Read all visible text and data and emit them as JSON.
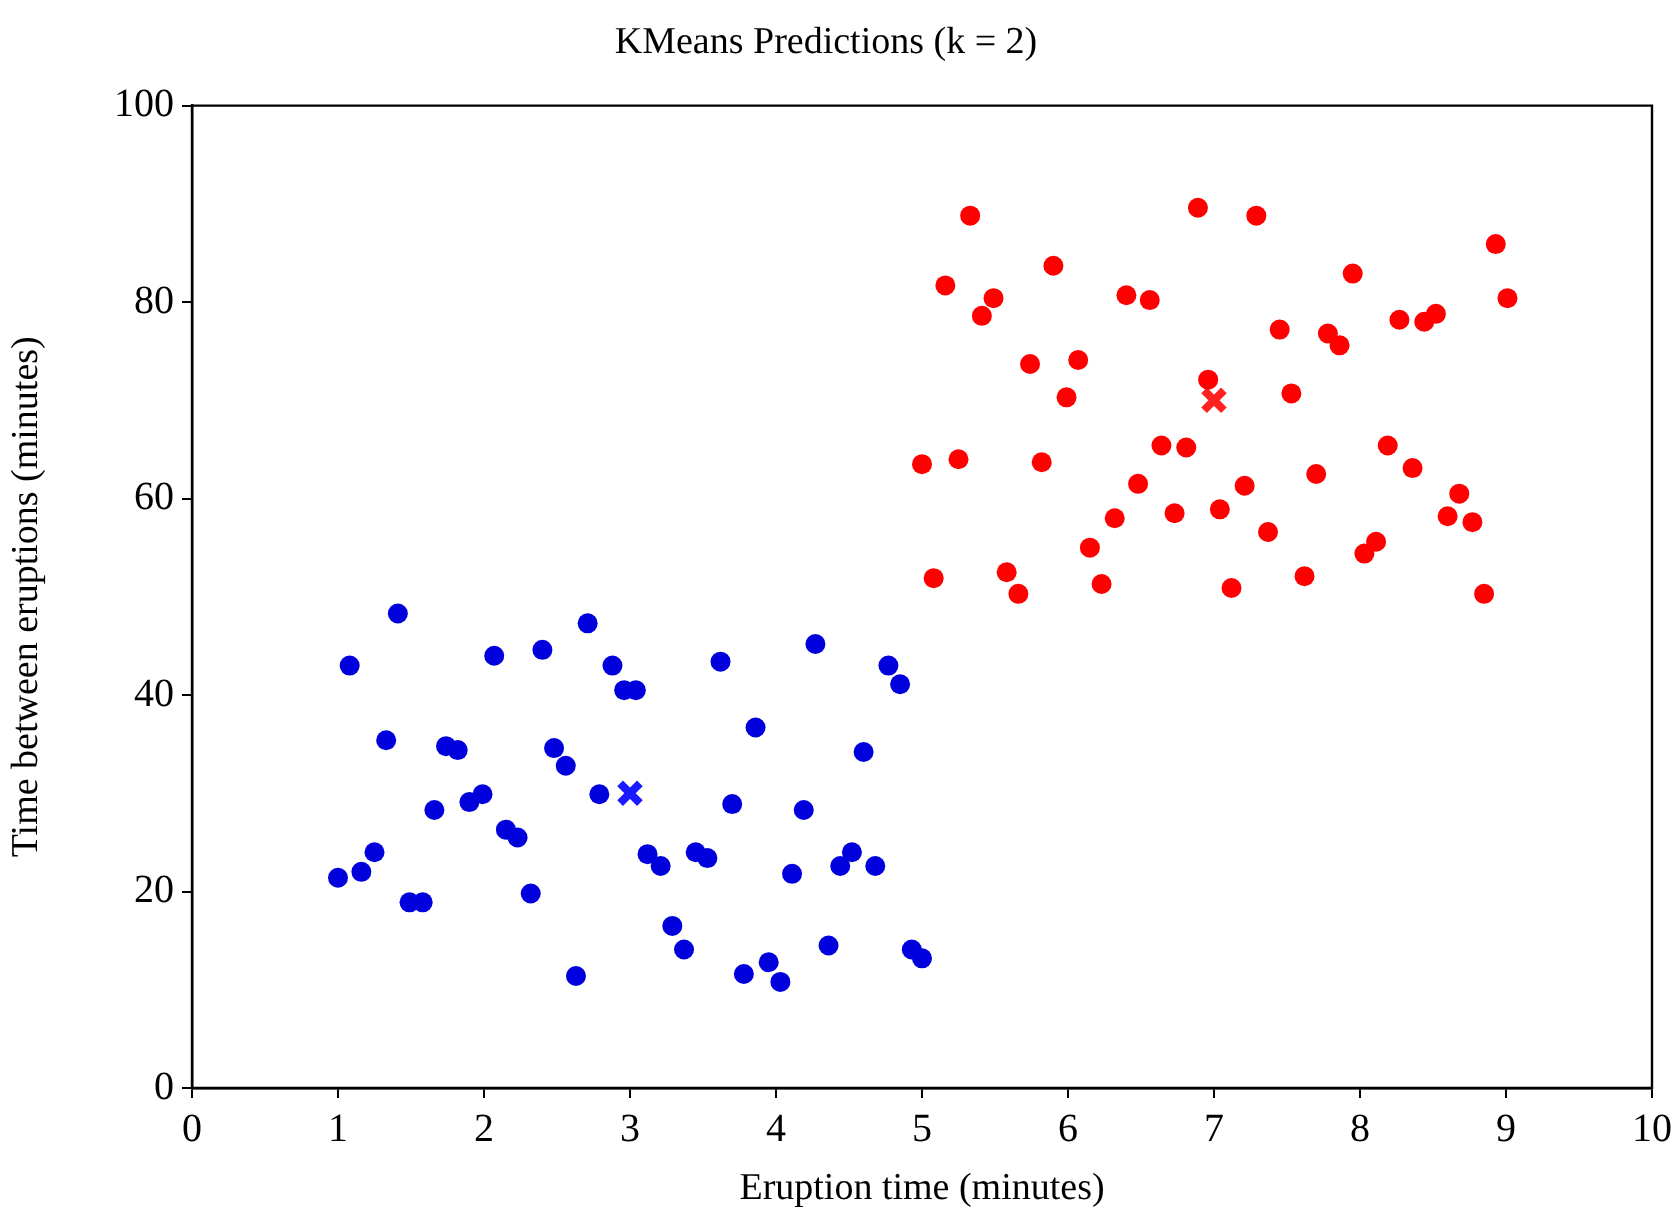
{
  "chart_data": {
    "type": "scatter",
    "title": "KMeans Predictions (k = 2)",
    "xlabel": "Eruption time (minutes)",
    "ylabel": "Time between eruptions (minutes)",
    "xlim": [
      0,
      10
    ],
    "xticks": [
      0,
      1,
      2,
      3,
      4,
      5,
      6,
      7,
      8,
      9,
      10
    ],
    "ylim": [
      0,
      100
    ],
    "yticks": [
      0,
      20,
      40,
      60,
      80,
      100
    ],
    "grid": false,
    "legend": false,
    "marker": "circle",
    "series": [
      {
        "color": "#0000dd",
        "x": [
          1.0,
          1.08,
          1.16,
          1.25,
          1.33,
          1.41,
          1.49,
          1.58,
          1.66,
          1.74,
          1.82,
          1.9,
          1.99,
          2.07,
          2.15,
          2.23,
          2.32,
          2.4,
          2.48,
          2.56,
          2.63,
          2.71,
          2.79,
          2.88,
          2.96,
          3.04,
          3.12,
          3.21,
          3.29,
          3.37,
          3.45,
          3.53,
          3.62,
          3.7,
          3.78,
          3.86,
          3.95,
          4.03,
          4.11,
          4.19,
          4.27,
          4.36,
          4.44,
          4.52,
          4.6,
          4.68,
          4.77,
          4.85,
          4.93,
          5.0
        ],
        "values": [
          21.4,
          43.0,
          22.0,
          24.0,
          35.4,
          48.3,
          18.9,
          18.9,
          28.3,
          34.8,
          34.4,
          29.1,
          29.9,
          44.0,
          26.3,
          25.5,
          19.8,
          44.6,
          34.6,
          32.8,
          11.4,
          47.3,
          29.9,
          43.0,
          40.5,
          40.5,
          23.8,
          22.6,
          16.5,
          14.1,
          24.0,
          23.4,
          43.4,
          28.9,
          11.6,
          36.7,
          12.8,
          10.8,
          21.8,
          28.3,
          45.2,
          14.5,
          22.6,
          24.0,
          34.2,
          22.6,
          43.0,
          41.1,
          14.1,
          13.2
        ]
      },
      {
        "color": "#ff0000",
        "x": [
          5.0,
          5.08,
          5.16,
          5.25,
          5.33,
          5.41,
          5.49,
          5.58,
          5.66,
          5.74,
          5.82,
          5.9,
          5.99,
          6.07,
          6.15,
          6.23,
          6.32,
          6.4,
          6.48,
          6.56,
          6.64,
          6.73,
          6.81,
          6.89,
          6.96,
          7.04,
          7.12,
          7.21,
          7.29,
          7.37,
          7.45,
          7.53,
          7.62,
          7.7,
          7.78,
          7.86,
          7.95,
          8.03,
          8.11,
          8.19,
          8.27,
          8.36,
          8.44,
          8.52,
          8.6,
          8.68,
          8.77,
          8.85,
          8.93,
          9.01
        ],
        "values": [
          63.5,
          51.9,
          81.7,
          64.0,
          88.8,
          78.6,
          80.4,
          52.5,
          50.3,
          73.7,
          63.7,
          83.7,
          70.3,
          74.1,
          55.0,
          51.3,
          58.0,
          80.7,
          61.5,
          80.2,
          65.4,
          58.5,
          65.2,
          89.6,
          72.1,
          58.9,
          50.9,
          61.3,
          88.8,
          56.6,
          77.2,
          70.7,
          52.1,
          62.5,
          76.8,
          75.6,
          82.9,
          54.4,
          55.6,
          65.4,
          78.2,
          63.1,
          78.0,
          78.8,
          58.2,
          60.5,
          57.6,
          50.3,
          85.9,
          80.4
        ]
      },
      {
        "color": "#1a1aff",
        "marker": "cross",
        "x": [
          3.0
        ],
        "values": [
          30.0
        ]
      },
      {
        "color": "#ff2020",
        "marker": "cross",
        "x": [
          7.0
        ],
        "values": [
          70.0
        ]
      }
    ]
  }
}
